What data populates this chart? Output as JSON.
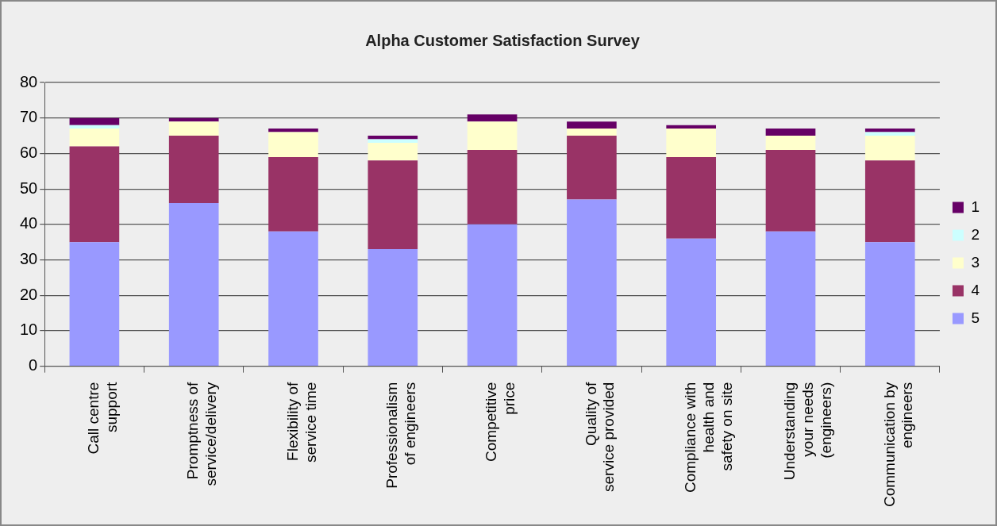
{
  "chart_data": {
    "type": "bar",
    "title": "Alpha Customer Satisfaction Survey",
    "stacked": true,
    "grid": "y",
    "legend": "right",
    "categories": [
      "Call centre support",
      "Promptness of service/delivery",
      "Flexibility of service time",
      "Professionalism of engineers",
      "Competitive price",
      "Quality of service provided",
      "Compliance with health and safety on site",
      "Understanding your needs (engineers)",
      "Communication by engineers"
    ],
    "ylim": [
      0,
      80
    ],
    "yticks": [
      0,
      10,
      20,
      30,
      40,
      50,
      60,
      70,
      80
    ],
    "series": [
      {
        "name": "5",
        "color": "#9999ff",
        "values": [
          35,
          46,
          38,
          33,
          40,
          47,
          36,
          38,
          35
        ]
      },
      {
        "name": "4",
        "color": "#993366",
        "values": [
          27,
          19,
          21,
          25,
          21,
          18,
          23,
          23,
          23
        ]
      },
      {
        "name": "3",
        "color": "#ffffcc",
        "values": [
          5,
          4,
          7,
          5,
          8,
          2,
          8,
          4,
          7
        ]
      },
      {
        "name": "2",
        "color": "#ccffff",
        "values": [
          1,
          0,
          0,
          1,
          0,
          0,
          0,
          0,
          1
        ]
      },
      {
        "name": "1",
        "color": "#660066",
        "values": [
          2,
          1,
          1,
          1,
          2,
          2,
          1,
          2,
          1
        ]
      }
    ]
  }
}
